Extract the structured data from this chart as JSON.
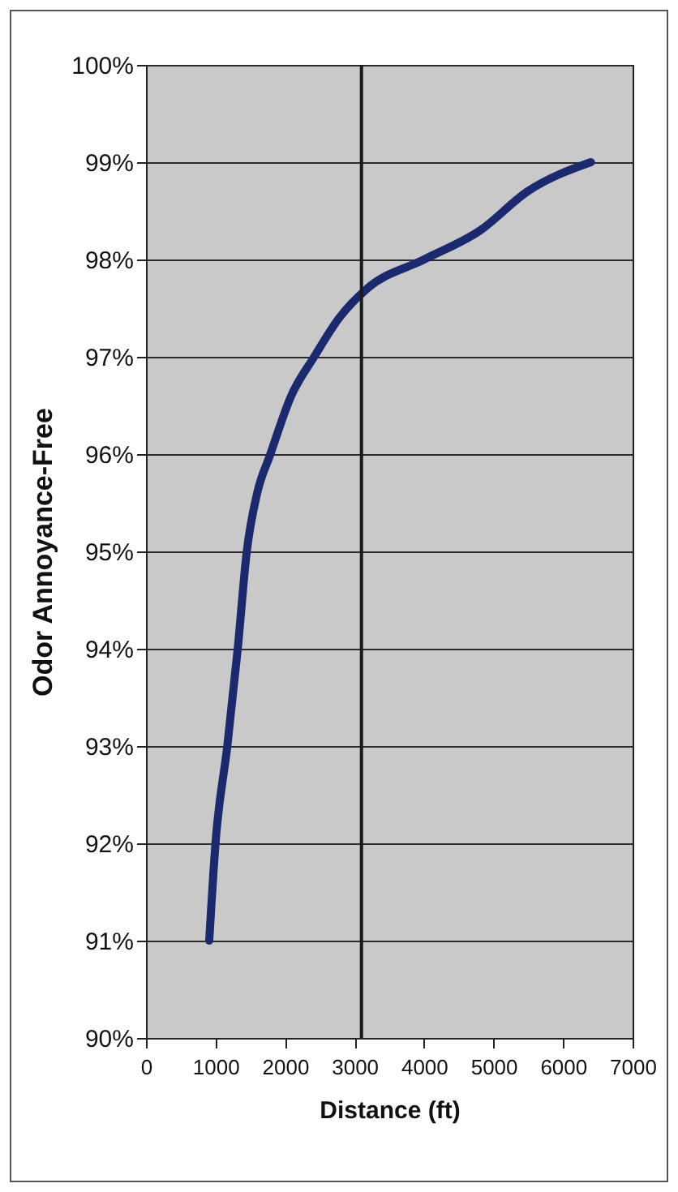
{
  "chart_data": {
    "type": "line",
    "xlabel": "Distance (ft)",
    "ylabel": "Odor Annoyance-Free",
    "series": [
      {
        "color": "#1b2a6e",
        "x": [
          910,
          1000,
          1170,
          1320,
          1450,
          1600,
          1790,
          2090,
          2420,
          2780,
          3180,
          4000,
          4810,
          5490,
          6400
        ],
        "values": [
          91.0,
          92.0,
          93.0,
          94.0,
          95.0,
          95.6,
          96.0,
          96.6,
          97.0,
          97.4,
          97.7,
          98.0,
          98.3,
          98.7,
          99.0
        ]
      }
    ],
    "xlim": [
      0,
      7000
    ],
    "xticks": [
      0,
      1000,
      2000,
      3000,
      4000,
      5000,
      6000,
      7000
    ],
    "ylim": [
      90,
      100
    ],
    "yticks": [
      {
        "value": 90,
        "label": "90%"
      },
      {
        "value": 91,
        "label": "91%"
      },
      {
        "value": 92,
        "label": "92%"
      },
      {
        "value": 93,
        "label": "93%"
      },
      {
        "value": 94,
        "label": "94%"
      },
      {
        "value": 95,
        "label": "95%"
      },
      {
        "value": 96,
        "label": "96%"
      },
      {
        "value": 97,
        "label": "97%"
      },
      {
        "value": 98,
        "label": "98%"
      },
      {
        "value": 99,
        "label": "99%"
      },
      {
        "value": 100,
        "label": "100%"
      }
    ],
    "grid": "y",
    "marker": "none",
    "line_style": "solid",
    "ref_lines": [
      {
        "axis": "x",
        "value": 3100,
        "color": "#1a1a1a"
      }
    ]
  }
}
